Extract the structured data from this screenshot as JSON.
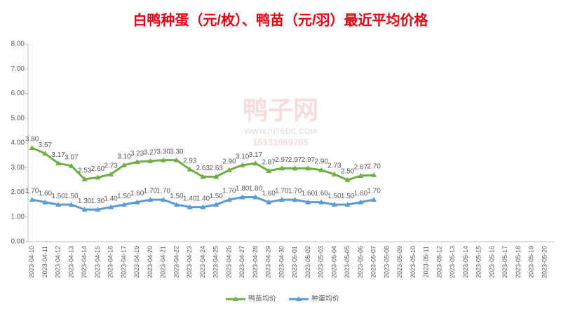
{
  "chart_data": {
    "type": "line",
    "title": "白鸭种蛋（元/枚）、鸭苗（元/羽）最近平均价格",
    "categories": [
      "2023-04-10",
      "2023-04-11",
      "2023-04-12",
      "2023-04-13",
      "2023-04-14",
      "2023-04-15",
      "2023-04-16",
      "2023-04-17",
      "2023-04-19",
      "2023-04-20",
      "2023-04-21",
      "2023-04-22",
      "2023-04-23",
      "2023-04-24",
      "2023-04-25",
      "2023-04-26",
      "2023-04-27",
      "2023-04-28",
      "2023-04-29",
      "2023-04-30",
      "2023-05-01",
      "2023-05-02",
      "2023-05-03",
      "2023-05-04",
      "2023-05-05",
      "2023-05-06",
      "2023-05-07",
      "2023-05-08",
      "2023-05-09",
      "2023-05-10",
      "2023-05-11",
      "2023-05-12",
      "2023-05-13",
      "2023-05-14",
      "2023-05-15",
      "2023-05-16",
      "2023-05-17",
      "2023-05-18",
      "2023-05-19",
      "2023-05-20"
    ],
    "series": [
      {
        "name": "鸭苗均价",
        "color": "#70ad47",
        "values": [
          3.8,
          3.57,
          3.17,
          3.07,
          2.53,
          2.6,
          2.73,
          3.1,
          3.23,
          3.27,
          3.3,
          3.3,
          2.93,
          2.63,
          2.63,
          2.9,
          3.1,
          3.17,
          2.87,
          2.97,
          2.97,
          2.97,
          2.9,
          2.73,
          2.5,
          2.67,
          2.7,
          null,
          null,
          null,
          null,
          null,
          null,
          null,
          null,
          null,
          null,
          null,
          null,
          null
        ],
        "value_labels": [
          "3.80",
          "3.57",
          "3.17",
          "3.07",
          "2.53",
          "2.60",
          "2.73",
          "3.10",
          "3.23",
          "3.27",
          "3.30",
          "3.30",
          "2.93",
          "2.63",
          "2.63",
          "2.90",
          "3.10",
          "3.17",
          "2.87",
          "2.97",
          "2.97",
          "2.97",
          "2.90",
          "2.73",
          "2.50",
          "2.67",
          "2.70",
          null,
          null,
          null,
          null,
          null,
          null,
          null,
          null,
          null,
          null,
          null,
          null,
          null
        ]
      },
      {
        "name": "种蛋均价",
        "color": "#5b9bd5",
        "values": [
          1.7,
          1.6,
          1.5,
          1.5,
          1.3,
          1.3,
          1.4,
          1.5,
          1.6,
          1.7,
          1.7,
          1.5,
          1.4,
          1.4,
          1.5,
          1.7,
          1.8,
          1.8,
          1.6,
          1.7,
          1.7,
          1.6,
          1.6,
          1.5,
          1.5,
          1.6,
          1.7,
          null,
          null,
          null,
          null,
          null,
          null,
          null,
          null,
          null,
          null,
          null,
          null,
          null
        ],
        "value_labels": [
          "1.70",
          "1.60",
          "1.50",
          "1.50",
          "1.30",
          "1.30",
          "1.40",
          "1.50",
          "1.60",
          "1.70",
          "1.70",
          "1.50",
          "1.40",
          "1.40",
          "1.50",
          "1.70",
          "1.80",
          "1.80",
          "1.60",
          "1.70",
          "1.70",
          "1.60",
          "1.60",
          "1.50",
          "1.50",
          "1.60",
          "1.70",
          null,
          null,
          null,
          null,
          null,
          null,
          null,
          null,
          null,
          null,
          null,
          null,
          null
        ]
      }
    ],
    "ylim": [
      0,
      8
    ],
    "yticks": [
      {
        "value": 0,
        "label": "0.00"
      },
      {
        "value": 1,
        "label": "1.00"
      },
      {
        "value": 2,
        "label": "2.00"
      },
      {
        "value": 3,
        "label": "3.00"
      },
      {
        "value": 4,
        "label": "4.00"
      },
      {
        "value": 5,
        "label": "5.00"
      },
      {
        "value": 6,
        "label": "6.00"
      },
      {
        "value": 7,
        "label": "7.00"
      },
      {
        "value": 8,
        "label": "8.00"
      }
    ],
    "legend": "bottom"
  },
  "watermark": {
    "name": "鸭子网",
    "site": "WWW.INTEDC.COM",
    "phone": "15131069765"
  }
}
